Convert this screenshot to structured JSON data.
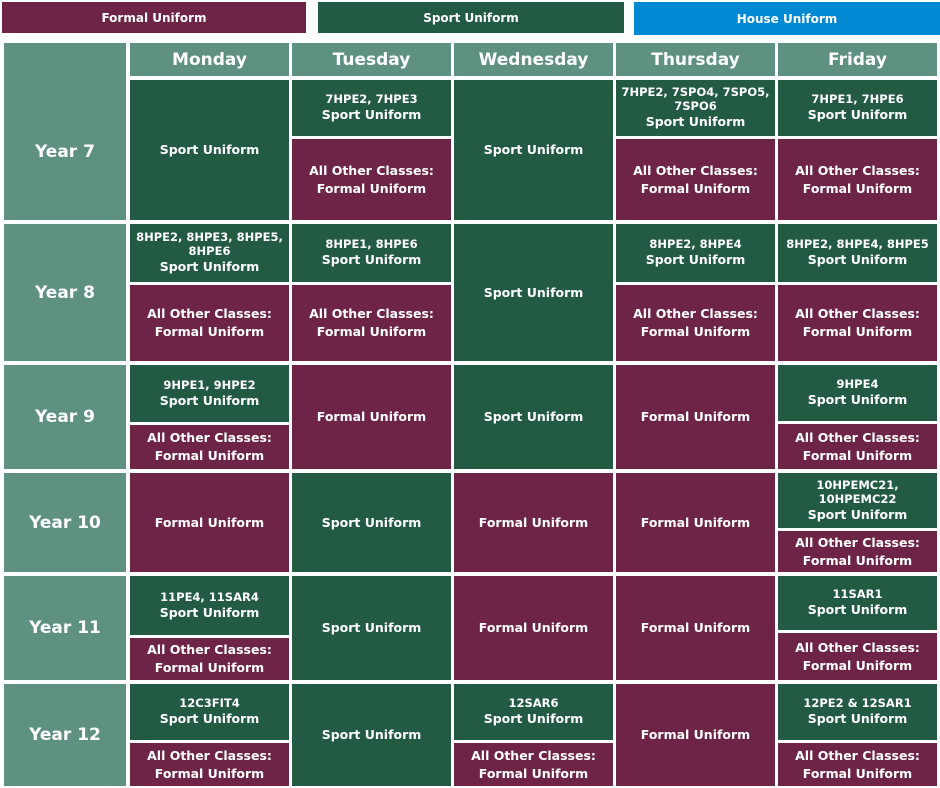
{
  "legend": {
    "formal": "Formal Uniform",
    "sport": "Sport Uniform",
    "house": "House Uniform"
  },
  "days": [
    "Monday",
    "Tuesday",
    "Wednesday",
    "Thursday",
    "Friday"
  ],
  "years": [
    "Year 7",
    "Year 8",
    "Year 9",
    "Year 10",
    "Year 11",
    "Year 12"
  ],
  "labels": {
    "sport_uniform": "Sport Uniform",
    "formal_uniform": "Formal Uniform",
    "others_line1": "All Other Classes:",
    "others_line2": "Formal  Uniform"
  },
  "classes": {
    "y7_tue": "7HPE2, 7HPE3",
    "y7_thu": "7HPE2, 7SPO4, 7SPO5, 7SPO6",
    "y7_fri": "7HPE1, 7HPE6",
    "y8_mon": "8HPE2, 8HPE3, 8HPE5, 8HPE6",
    "y8_tue": "8HPE1, 8HPE6",
    "y8_thu": "8HPE2, 8HPE4",
    "y8_fri": "8HPE2, 8HPE4, 8HPE5",
    "y9_mon": "9HPE1, 9HPE2",
    "y9_fri": "9HPE4",
    "y10_fri": "10HPEMC21, 10HPEMC22",
    "y11_mon": "11PE4, 11SAR4",
    "y11_fri": "11SAR1",
    "y12_mon": "12C3FIT4",
    "y12_wed": "12SAR6",
    "y12_fri": "12PE2 & 12SAR1"
  }
}
